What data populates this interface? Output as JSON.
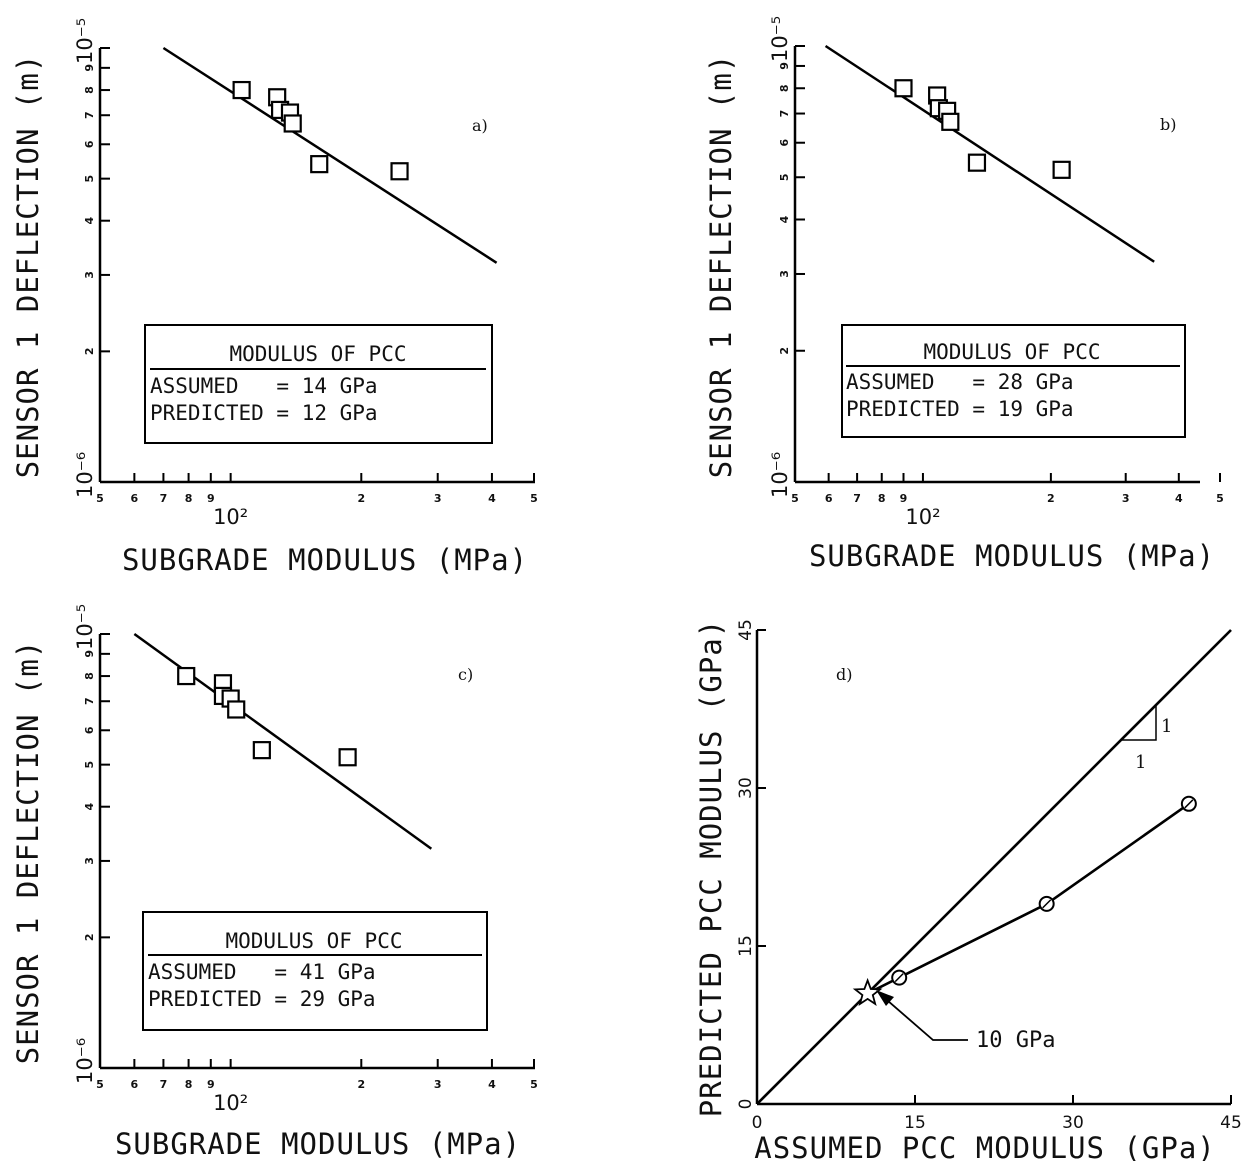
{
  "chart_data": [
    {
      "type": "scatter",
      "panel_label": "a)",
      "xlabel": "SUBGRADE MODULUS (MPa)",
      "ylabel": "SENSOR 1 DEFLECTION (m)",
      "x_scale": "log",
      "y_scale": "log",
      "xlim": [
        50,
        500
      ],
      "ylim": [
        1e-06,
        1e-05
      ],
      "x_tick_labels": [
        "5",
        "6",
        "7",
        "8",
        "9",
        "10²",
        "2",
        "3",
        "4",
        "5"
      ],
      "y_tick_labels": [
        "10⁻⁶",
        "2",
        "3",
        "4",
        "5",
        "6",
        "7",
        "8",
        "9",
        "10⁻⁵"
      ],
      "points": [
        {
          "x": 106,
          "y": 8e-06
        },
        {
          "x": 128,
          "y": 7.7e-06
        },
        {
          "x": 130,
          "y": 7.2e-06
        },
        {
          "x": 137,
          "y": 7.1e-06
        },
        {
          "x": 139,
          "y": 6.7e-06
        },
        {
          "x": 160,
          "y": 5.4e-06
        },
        {
          "x": 245,
          "y": 5.2e-06
        }
      ],
      "fit_line": [
        {
          "x": 70,
          "y": 1e-05
        },
        {
          "x": 410,
          "y": 3.2e-06
        }
      ],
      "legend": {
        "title": "MODULUS OF PCC",
        "assumed": "ASSUMED   = 14 GPa",
        "predicted": "PREDICTED = 12 GPa"
      }
    },
    {
      "type": "scatter",
      "panel_label": "b)",
      "xlabel": "SUBGRADE MODULUS (MPa)",
      "ylabel": "SENSOR 1 DEFLECTION (m)",
      "x_scale": "log",
      "y_scale": "log",
      "xlim": [
        50,
        500
      ],
      "ylim": [
        1e-06,
        1e-05
      ],
      "x_tick_labels": [
        "5",
        "6",
        "7",
        "8",
        "9",
        "10²",
        "2",
        "3",
        "4",
        "5"
      ],
      "y_tick_labels": [
        "10⁻⁶",
        "2",
        "3",
        "4",
        "5",
        "6",
        "7",
        "8",
        "9",
        "10⁻⁵"
      ],
      "points": [
        {
          "x": 90,
          "y": 8e-06
        },
        {
          "x": 108,
          "y": 7.7e-06
        },
        {
          "x": 109,
          "y": 7.2e-06
        },
        {
          "x": 114,
          "y": 7.1e-06
        },
        {
          "x": 116,
          "y": 6.7e-06
        },
        {
          "x": 134,
          "y": 5.4e-06
        },
        {
          "x": 212,
          "y": 5.2e-06
        }
      ],
      "fit_line": [
        {
          "x": 59,
          "y": 1e-05
        },
        {
          "x": 350,
          "y": 3.2e-06
        }
      ],
      "legend": {
        "title": "MODULUS OF PCC",
        "assumed": "ASSUMED   = 28 GPa",
        "predicted": "PREDICTED = 19 GPa"
      }
    },
    {
      "type": "scatter",
      "panel_label": "c)",
      "xlabel": "SUBGRADE MODULUS (MPa)",
      "ylabel": "SENSOR 1 DEFLECTION (m)",
      "x_scale": "log",
      "y_scale": "log",
      "xlim": [
        50,
        500
      ],
      "ylim": [
        1e-06,
        1e-05
      ],
      "x_tick_labels": [
        "5",
        "6",
        "7",
        "8",
        "9",
        "10²",
        "2",
        "3",
        "4",
        "5"
      ],
      "y_tick_labels": [
        "10⁻⁶",
        "2",
        "3",
        "4",
        "5",
        "6",
        "7",
        "8",
        "9",
        "10⁻⁵"
      ],
      "points": [
        {
          "x": 79,
          "y": 8e-06
        },
        {
          "x": 96,
          "y": 7.7e-06
        },
        {
          "x": 96,
          "y": 7.2e-06
        },
        {
          "x": 100,
          "y": 7.1e-06
        },
        {
          "x": 103,
          "y": 6.7e-06
        },
        {
          "x": 118,
          "y": 5.4e-06
        },
        {
          "x": 186,
          "y": 5.2e-06
        }
      ],
      "fit_line": [
        {
          "x": 60,
          "y": 1e-05
        },
        {
          "x": 290,
          "y": 3.2e-06
        }
      ],
      "legend": {
        "title": "MODULUS OF PCC",
        "assumed": "ASSUMED   = 41 GPa",
        "predicted": "PREDICTED = 29 GPa"
      }
    },
    {
      "type": "line",
      "panel_label": "d)",
      "xlabel": "ASSUMED PCC MODULUS (GPa)",
      "ylabel": "PREDICTED PCC MODULUS (GPa)",
      "xlim": [
        0,
        45
      ],
      "ylim": [
        0,
        45
      ],
      "x_ticks": [
        0,
        15,
        30,
        45
      ],
      "y_ticks": [
        0,
        15,
        30,
        45
      ],
      "series": [
        {
          "name": "",
          "style": "line-of-equality",
          "points": [
            {
              "x": 0,
              "y": 0
            },
            {
              "x": 45,
              "y": 45
            }
          ]
        },
        {
          "name": "",
          "style": "circle-markers",
          "points": [
            {
              "x": 10.5,
              "y": 10.5
            },
            {
              "x": 13.5,
              "y": 12
            },
            {
              "x": 27.5,
              "y": 19
            },
            {
              "x": 41,
              "y": 28.5
            }
          ]
        }
      ],
      "markers": {
        "star": {
          "x": 10.5,
          "y": 10.5
        },
        "circles": [
          {
            "x": 13.5,
            "y": 12
          },
          {
            "x": 27.5,
            "y": 19
          },
          {
            "x": 41,
            "y": 28.5
          }
        ]
      },
      "slope_label_1": "1",
      "slope_label_2": "1",
      "annotation": "10 GPa"
    }
  ]
}
